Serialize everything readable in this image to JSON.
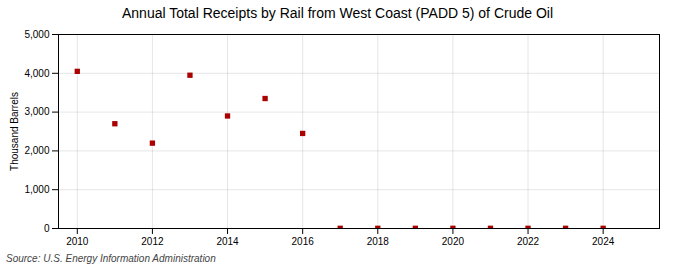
{
  "chart_data": {
    "type": "scatter",
    "title": "Annual Total Receipts by Rail from West Coast (PADD 5) of Crude Oil",
    "ylabel": "Thousand Barrels",
    "source": "Source: U.S. Energy Information Administration",
    "x": [
      2010,
      2011,
      2012,
      2013,
      2014,
      2015,
      2016,
      2017,
      2018,
      2019,
      2020,
      2021,
      2022,
      2023,
      2024
    ],
    "values": [
      4050,
      2700,
      2200,
      3950,
      2900,
      3350,
      2450,
      5,
      5,
      5,
      5,
      5,
      5,
      5,
      5
    ],
    "color": "#aa0000",
    "marker": "square",
    "xlim": [
      2009.5,
      2025.5
    ],
    "ylim": [
      0,
      5000
    ],
    "xticks": [
      2010,
      2012,
      2014,
      2016,
      2018,
      2020,
      2022,
      2024
    ],
    "yticks": [
      0,
      {
        "value": 1000,
        "label": "1,000"
      },
      {
        "value": 2000,
        "label": "2,000"
      },
      {
        "value": 3000,
        "label": "3,000"
      },
      {
        "value": 4000,
        "label": "4,000"
      },
      {
        "value": 5000,
        "label": "5,000"
      }
    ],
    "grid": true
  }
}
